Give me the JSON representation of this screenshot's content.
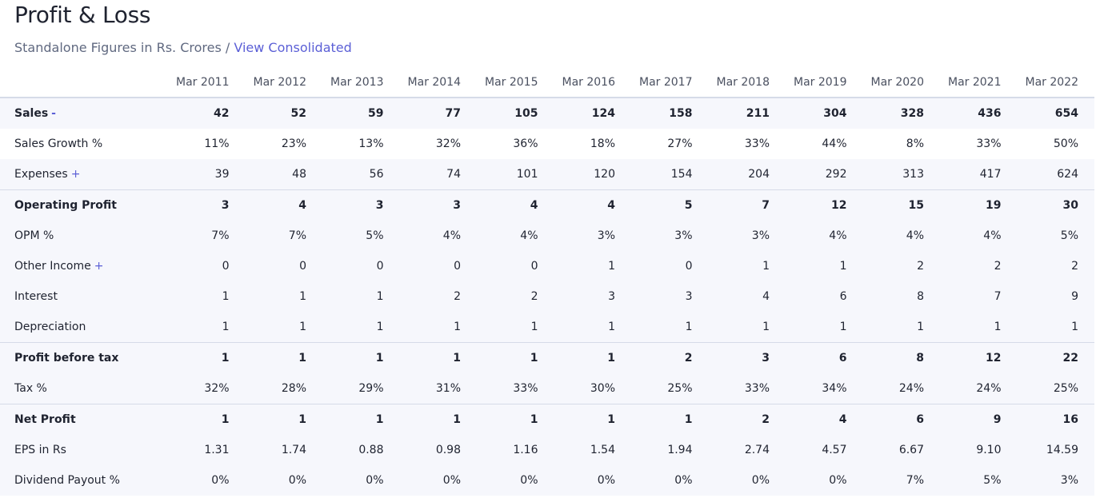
{
  "header": {
    "title": "Profit & Loss",
    "subtitle": "Standalone Figures in Rs. Crores /",
    "link": "View Consolidated"
  },
  "table": {
    "columns": [
      "Mar 2011",
      "Mar 2012",
      "Mar 2013",
      "Mar 2014",
      "Mar 2015",
      "Mar 2016",
      "Mar 2017",
      "Mar 2018",
      "Mar 2019",
      "Mar 2020",
      "Mar 2021",
      "Mar 2022"
    ],
    "rows": [
      {
        "label": "Sales",
        "toggle": "-",
        "bold": true,
        "cells": [
          "42",
          "52",
          "59",
          "77",
          "105",
          "124",
          "158",
          "211",
          "304",
          "328",
          "436",
          "654"
        ]
      },
      {
        "label": "Sales Growth %",
        "cells": [
          "11%",
          "23%",
          "13%",
          "32%",
          "36%",
          "18%",
          "27%",
          "33%",
          "44%",
          "8%",
          "33%",
          "50%"
        ]
      },
      {
        "label": "Expenses",
        "toggle": "+",
        "cells": [
          "39",
          "48",
          "56",
          "74",
          "101",
          "120",
          "154",
          "204",
          "292",
          "313",
          "417",
          "624"
        ]
      },
      {
        "label": "Operating Profit",
        "bold": true,
        "cells": [
          "3",
          "4",
          "3",
          "3",
          "4",
          "4",
          "5",
          "7",
          "12",
          "15",
          "19",
          "30"
        ]
      },
      {
        "label": "OPM %",
        "cells": [
          "7%",
          "7%",
          "5%",
          "4%",
          "4%",
          "3%",
          "3%",
          "3%",
          "4%",
          "4%",
          "4%",
          "5%"
        ]
      },
      {
        "label": "Other Income",
        "toggle": "+",
        "cells": [
          "0",
          "0",
          "0",
          "0",
          "0",
          "1",
          "0",
          "1",
          "1",
          "2",
          "2",
          "2"
        ]
      },
      {
        "label": "Interest",
        "cells": [
          "1",
          "1",
          "1",
          "2",
          "2",
          "3",
          "3",
          "4",
          "6",
          "8",
          "7",
          "9"
        ]
      },
      {
        "label": "Depreciation",
        "cells": [
          "1",
          "1",
          "1",
          "1",
          "1",
          "1",
          "1",
          "1",
          "1",
          "1",
          "1",
          "1"
        ]
      },
      {
        "label": "Profit before tax",
        "bold": true,
        "cells": [
          "1",
          "1",
          "1",
          "1",
          "1",
          "1",
          "2",
          "3",
          "6",
          "8",
          "12",
          "22"
        ]
      },
      {
        "label": "Tax %",
        "cells": [
          "32%",
          "28%",
          "29%",
          "31%",
          "33%",
          "30%",
          "25%",
          "33%",
          "34%",
          "24%",
          "24%",
          "25%"
        ]
      },
      {
        "label": "Net Profit",
        "bold": true,
        "cells": [
          "1",
          "1",
          "1",
          "1",
          "1",
          "1",
          "1",
          "2",
          "4",
          "6",
          "9",
          "16"
        ]
      },
      {
        "label": "EPS in Rs",
        "cells": [
          "1.31",
          "1.74",
          "0.88",
          "0.98",
          "1.16",
          "1.54",
          "1.94",
          "2.74",
          "4.57",
          "6.67",
          "9.10",
          "14.59"
        ]
      },
      {
        "label": "Dividend Payout %",
        "cells": [
          "0%",
          "0%",
          "0%",
          "0%",
          "0%",
          "0%",
          "0%",
          "0%",
          "0%",
          "7%",
          "5%",
          "3%"
        ]
      }
    ]
  }
}
